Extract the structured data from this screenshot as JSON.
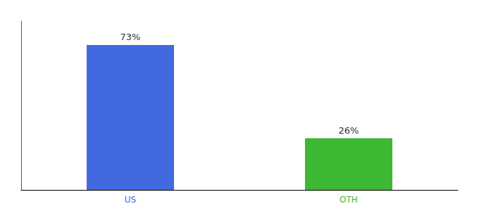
{
  "chart_data": {
    "type": "bar",
    "categories": [
      "US",
      "OTH"
    ],
    "values": [
      73,
      26
    ],
    "value_labels": [
      "73%",
      "26%"
    ],
    "colors": [
      "#4369de",
      "#3cb832"
    ],
    "ylim": [
      0,
      85
    ],
    "yticks": [],
    "grid": false,
    "data_labels": true,
    "tick_labels": "x"
  }
}
